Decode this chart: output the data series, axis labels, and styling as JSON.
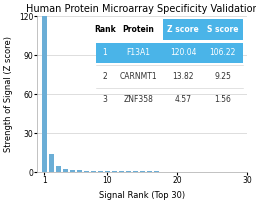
{
  "title": "Human Protein Microarray Specificity Validation",
  "xlabel": "Signal Rank (Top 30)",
  "ylabel": "Strength of Signal (Z score)",
  "xlim": [
    0,
    30
  ],
  "ylim": [
    0,
    120
  ],
  "yticks": [
    0,
    30,
    60,
    90,
    120
  ],
  "xticks": [
    1,
    10,
    20,
    30
  ],
  "bar_color": "#6baed6",
  "bar_data": {
    "ranks": [
      1,
      2,
      3,
      4,
      5,
      6,
      7,
      8,
      9,
      10,
      11,
      12,
      13,
      14,
      15,
      16,
      17,
      18,
      19,
      20,
      21,
      22,
      23,
      24,
      25,
      26,
      27,
      28,
      29,
      30
    ],
    "values": [
      120.04,
      13.82,
      4.57,
      2.5,
      1.8,
      1.4,
      1.2,
      1.0,
      0.9,
      0.8,
      0.75,
      0.7,
      0.65,
      0.6,
      0.55,
      0.5,
      0.48,
      0.46,
      0.44,
      0.42,
      0.4,
      0.38,
      0.36,
      0.34,
      0.32,
      0.3,
      0.28,
      0.26,
      0.24,
      0.22
    ]
  },
  "table": {
    "col_labels": [
      "Rank",
      "Protein",
      "Z score",
      "S score"
    ],
    "rows": [
      [
        "1",
        "F13A1",
        "120.04",
        "106.22"
      ],
      [
        "2",
        "CARNMT1",
        "13.82",
        "9.25"
      ],
      [
        "3",
        "ZNF358",
        "4.57",
        "1.56"
      ]
    ],
    "highlight_row": 0,
    "highlight_color": "#4ab4e8",
    "highlight_text_color": "#ffffff",
    "header_fontsize": 5.5,
    "row_fontsize": 5.5
  },
  "title_fontsize": 7.0,
  "axis_label_fontsize": 6.0,
  "tick_fontsize": 5.5,
  "background_color": "#ffffff"
}
